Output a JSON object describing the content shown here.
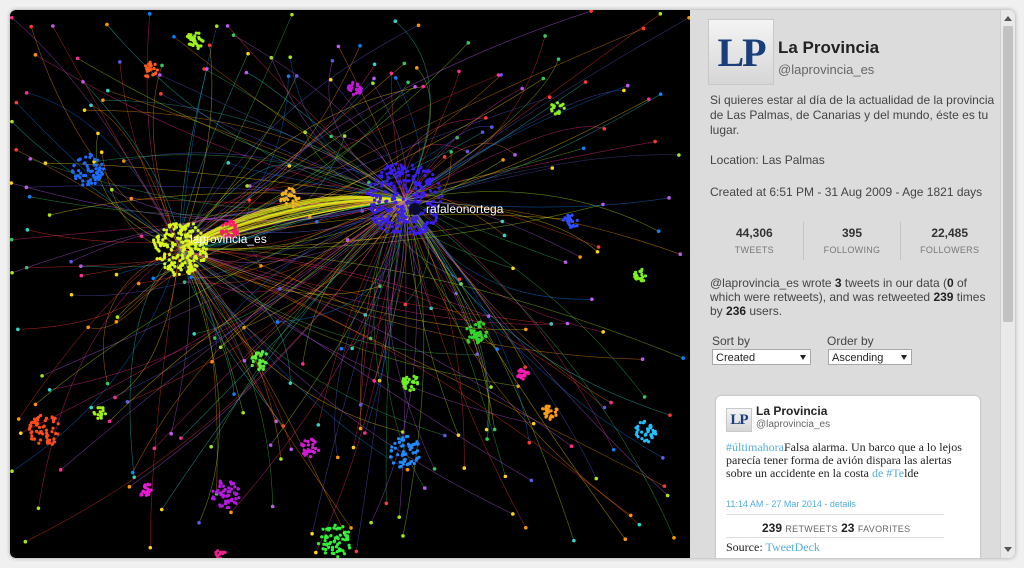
{
  "graph": {
    "labels": [
      {
        "text": "laprovincia_es"
      },
      {
        "text": "rafaleonortega"
      }
    ]
  },
  "profile": {
    "logo_text": "LP",
    "name": "La Provincia",
    "handle": "@laprovincia_es",
    "bio": "Si quieres estar al día de la actualidad de la provincia de Las Palmas, de Canarias y del mundo, éste es tu lugar.",
    "location": "Location: Las Palmas",
    "created": "Created at 6:51 PM - 31 Aug 2009 - Age 1821 days",
    "stats": [
      {
        "value": "44,306",
        "label": "TWEETS"
      },
      {
        "value": "395",
        "label": "FOLLOWING"
      },
      {
        "value": "22,485",
        "label": "FOLLOWERS"
      }
    ],
    "summary": {
      "p1": "@laprovincia_es wrote ",
      "tweets": "3",
      "p2": " tweets in our data (",
      "retweets": "0",
      "p3": " of which were retweets), and was retweeted ",
      "retweeted": "239",
      "p4": " times by ",
      "users": "236",
      "p5": " users."
    }
  },
  "controls": {
    "sort_by_label": "Sort by",
    "sort_by_value": "Created",
    "order_by_label": "Order by",
    "order_by_value": "Ascending"
  },
  "tweet": {
    "logo_text": "LP",
    "name": "La Provincia",
    "handle": "@laprovincia_es",
    "hashtag": "#últimahora",
    "text1": "Falsa alarma. Un barco que a lo lejos parecía tener forma de avión dispara las alertas sobre un accidente en la costa ",
    "link": "de #Te",
    "text2": "lde",
    "meta": "11:14 AM - 27 Mar 2014 - details",
    "retweets": "239",
    "retweets_label": "RETWEETS",
    "favorites": "23",
    "favorites_label": "FAVORITES",
    "source_label": "Source:",
    "source_value": "TweetDeck"
  },
  "colors": {
    "graph_bg": "#000000",
    "panel_bg": "#dcdcdc",
    "accent": "#55acd8",
    "hub_blue": "#3a1df5",
    "hub_yellow": "#d8f51e"
  }
}
